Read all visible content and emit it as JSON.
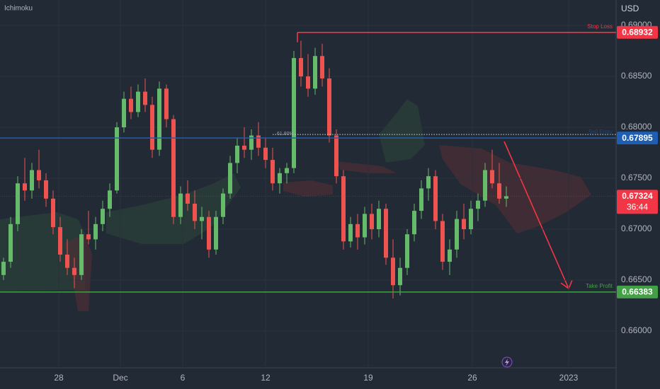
{
  "chart_data": {
    "type": "candlestick",
    "indicator": "Ichimoku",
    "currency": "USD",
    "up_color": "#66bb6a",
    "down_color": "#ef5350",
    "grid": true,
    "open": [
      0.6655,
      0.6668,
      0.6705,
      0.6745,
      0.6738,
      0.6758,
      0.6748,
      0.673,
      0.6702,
      0.6675,
      0.6662,
      0.6655,
      0.6695,
      0.669,
      0.6705,
      0.672,
      0.6738,
      0.68,
      0.6828,
      0.6815,
      0.6835,
      0.6822,
      0.6778,
      0.6838,
      0.6808,
      0.6712,
      0.6735,
      0.6725,
      0.6708,
      0.6712,
      0.668,
      0.6712,
      0.6735,
      0.6765,
      0.6782,
      0.6778,
      0.6792,
      0.678,
      0.6768,
      0.6745,
      0.6755,
      0.676,
      0.6868,
      0.685,
      0.6838,
      0.687,
      0.6848,
      0.6792,
      0.6752,
      0.6688,
      0.6705,
      0.6692,
      0.6715,
      0.67,
      0.672,
      0.6672,
      0.6645,
      0.6662,
      0.6695,
      0.6718,
      0.674,
      0.6752,
      0.6708,
      0.6668,
      0.668,
      0.671,
      0.67,
      0.672,
      0.6728,
      0.6758,
      0.6745,
      0.673
    ],
    "high": [
      0.6672,
      0.6712,
      0.6752,
      0.677,
      0.6765,
      0.6778,
      0.6755,
      0.6738,
      0.6712,
      0.669,
      0.6672,
      0.67,
      0.6718,
      0.6712,
      0.6728,
      0.6745,
      0.6805,
      0.6835,
      0.684,
      0.6842,
      0.6848,
      0.683,
      0.6845,
      0.6842,
      0.6812,
      0.6742,
      0.6748,
      0.6738,
      0.6722,
      0.6718,
      0.6718,
      0.674,
      0.6772,
      0.679,
      0.68,
      0.6798,
      0.6805,
      0.679,
      0.678,
      0.676,
      0.6765,
      0.6875,
      0.6885,
      0.6872,
      0.6878,
      0.6882,
      0.6858,
      0.6798,
      0.6758,
      0.6712,
      0.6715,
      0.6722,
      0.6725,
      0.6728,
      0.6725,
      0.669,
      0.6672,
      0.67,
      0.6725,
      0.6748,
      0.676,
      0.6758,
      0.6715,
      0.669,
      0.6718,
      0.6725,
      0.6728,
      0.6735,
      0.6765,
      0.6778,
      0.6765,
      0.6742
    ],
    "low": [
      0.665,
      0.6662,
      0.6698,
      0.6728,
      0.673,
      0.674,
      0.6722,
      0.6695,
      0.6668,
      0.6655,
      0.6642,
      0.665,
      0.6685,
      0.668,
      0.6698,
      0.6712,
      0.6735,
      0.6795,
      0.6808,
      0.681,
      0.6815,
      0.677,
      0.6772,
      0.68,
      0.6705,
      0.6705,
      0.6718,
      0.67,
      0.669,
      0.6672,
      0.6675,
      0.6705,
      0.673,
      0.6755,
      0.677,
      0.6768,
      0.6772,
      0.676,
      0.6738,
      0.6735,
      0.6745,
      0.6755,
      0.684,
      0.683,
      0.6832,
      0.684,
      0.6785,
      0.6745,
      0.668,
      0.6682,
      0.668,
      0.6685,
      0.669,
      0.6692,
      0.6665,
      0.6632,
      0.6635,
      0.6655,
      0.6688,
      0.671,
      0.6728,
      0.67,
      0.666,
      0.6655,
      0.6672,
      0.669,
      0.6695,
      0.6708,
      0.6722,
      0.674,
      0.6725,
      0.6722
    ],
    "close": [
      0.6668,
      0.6705,
      0.6745,
      0.6738,
      0.6758,
      0.6748,
      0.673,
      0.6702,
      0.6675,
      0.6662,
      0.6655,
      0.6695,
      0.669,
      0.6705,
      0.672,
      0.6738,
      0.68,
      0.6828,
      0.6815,
      0.6835,
      0.6822,
      0.6778,
      0.6838,
      0.6808,
      0.6712,
      0.6735,
      0.6725,
      0.6708,
      0.6712,
      0.668,
      0.6712,
      0.6735,
      0.6765,
      0.6782,
      0.6778,
      0.6792,
      0.678,
      0.6768,
      0.6745,
      0.6755,
      0.676,
      0.6868,
      0.685,
      0.6838,
      0.687,
      0.6848,
      0.6792,
      0.6752,
      0.6688,
      0.6705,
      0.6692,
      0.6715,
      0.67,
      0.672,
      0.6672,
      0.6645,
      0.6662,
      0.6695,
      0.6718,
      0.674,
      0.6752,
      0.6708,
      0.6668,
      0.668,
      0.671,
      0.67,
      0.672,
      0.6728,
      0.6758,
      0.6745,
      0.673,
      0.67324
    ],
    "countdown": "36:44",
    "xlim": [
      -0.5,
      86.5
    ],
    "xticks": [
      {
        "value": 7.8,
        "label": "28"
      },
      {
        "value": 16.5,
        "label": "Dec"
      },
      {
        "value": 25.3,
        "label": "6"
      },
      {
        "value": 37,
        "label": "12"
      },
      {
        "value": 51.5,
        "label": "19"
      },
      {
        "value": 66.2,
        "label": "26"
      },
      {
        "value": 79.8,
        "label": "2023"
      }
    ],
    "ylim": [
      0.65653,
      0.6925
    ],
    "yticks": [
      {
        "value": 0.69,
        "label": "0.69000"
      },
      {
        "value": 0.685,
        "label": "0.68500"
      },
      {
        "value": 0.68,
        "label": "0.68000"
      },
      {
        "value": 0.675,
        "label": "0.67500"
      },
      {
        "value": 0.67,
        "label": "0.67000"
      },
      {
        "value": 0.665,
        "label": "0.66500"
      },
      {
        "value": 0.66,
        "label": "0.66000"
      }
    ],
    "levels": [
      {
        "name": "Stop Loss",
        "value": 0.68932,
        "color": "#f23645",
        "start": 41.5
      },
      {
        "name": "Sell Entry",
        "value": 0.67895,
        "color": "#1e5fb4"
      },
      {
        "name": "Take Profit",
        "value": 0.66383,
        "color": "#43a047"
      }
    ],
    "fib": {
      "label": "61.80%",
      "value": 0.6793,
      "start": 38
    }
  }
}
